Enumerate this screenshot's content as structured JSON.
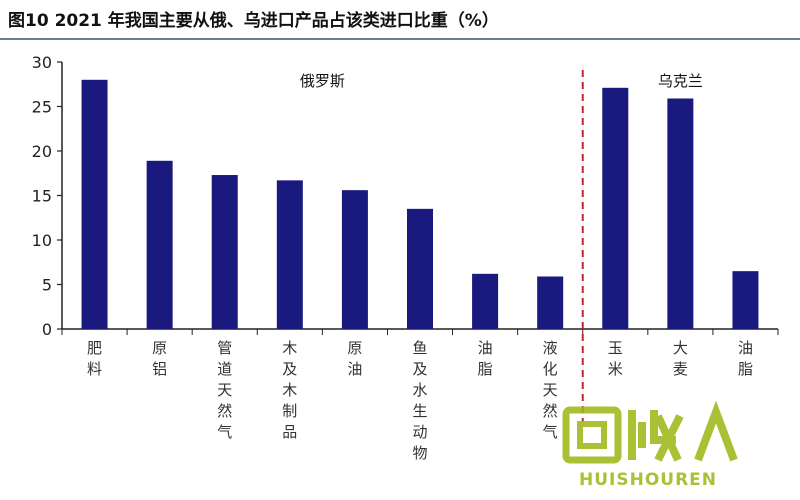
{
  "title": "图10 2021 年我国主要从俄、乌进口产品占该类进口比重（%）",
  "colors": {
    "bar": "#1a1a7e",
    "divider": "#cc2222",
    "axis": "#222222",
    "watermark": "#a0b81a"
  },
  "watermark": {
    "logo_text": "回收",
    "brand_text": "HUISHOUREN"
  },
  "chart_data": {
    "type": "bar",
    "title": "图10 2021 年我国主要从俄、乌进口产品占该类进口比重（%）",
    "xlabel": "",
    "ylabel": "",
    "ylim": [
      0,
      30
    ],
    "yticks": [
      0,
      5,
      10,
      15,
      20,
      25,
      30
    ],
    "grid": false,
    "legend": "none",
    "categories": [
      "肥料",
      "原铝",
      "管道天然气",
      "木及木制品",
      "原油",
      "鱼及水生动物",
      "油脂",
      "液化天然气",
      "玉米",
      "大麦",
      "油脂"
    ],
    "values": [
      28.0,
      18.9,
      17.3,
      16.7,
      15.6,
      13.5,
      6.2,
      5.9,
      27.1,
      25.9,
      6.5
    ],
    "groups": [
      {
        "name": "俄罗斯",
        "start": 0,
        "end": 7
      },
      {
        "name": "乌克兰",
        "start": 8,
        "end": 10
      }
    ]
  }
}
